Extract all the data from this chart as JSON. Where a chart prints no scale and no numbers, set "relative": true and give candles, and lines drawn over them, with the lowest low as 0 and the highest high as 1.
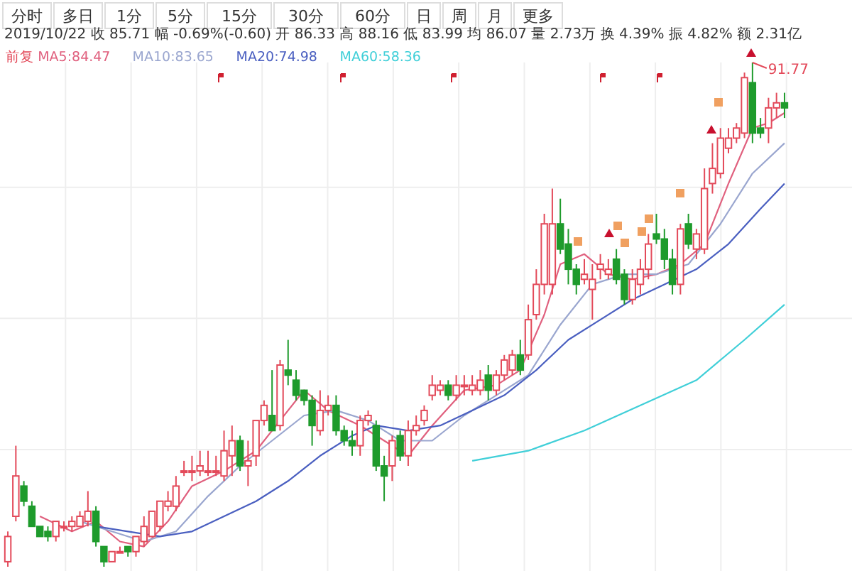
{
  "chart_data": {
    "type": "candlestick",
    "relative": true,
    "grid": true,
    "legend": "top left",
    "subtitle": "2019/10/22  收 85.71  幅 -0.69%(-0.60)  开 86.33  高 88.16  低 83.99  均 86.07  量 2.73万  换 4.39%  振 4.82%  额 2.31亿",
    "annotations": [
      "分时",
      "多日",
      "1分",
      "5分",
      "15分",
      "30分",
      "60分",
      "日",
      "周",
      "月",
      "更多"
    ],
    "categories": [
      null,
      null,
      null,
      null,
      null,
      null,
      null,
      null,
      null,
      null,
      null,
      null,
      null,
      null,
      null,
      null,
      null,
      null,
      null,
      null,
      null,
      null,
      null,
      null,
      null,
      null,
      null,
      null,
      null,
      null,
      null,
      null,
      null,
      null,
      null,
      null,
      null,
      null,
      null,
      null,
      null,
      null,
      null,
      null,
      null,
      null,
      null,
      null,
      null,
      null,
      null,
      null,
      null,
      null,
      null,
      null,
      null,
      null,
      null,
      null,
      null,
      null,
      null,
      null,
      null,
      null,
      null,
      null,
      null,
      null,
      null,
      null,
      null,
      null,
      null,
      null,
      null,
      null,
      null,
      null,
      null,
      null,
      null,
      null,
      null,
      null,
      null,
      null,
      null,
      null,
      null,
      null,
      null,
      null,
      null,
      null,
      null,
      null
    ],
    "series": [
      {
        "name": "前复",
        "value_labels": [
          null,
          null,
          null,
          null,
          null,
          null,
          null,
          null,
          null,
          null,
          null,
          null,
          null,
          null,
          null,
          null,
          null,
          null,
          null,
          null,
          null,
          null,
          null,
          null,
          null,
          null,
          null,
          null,
          null,
          null,
          null,
          null,
          null,
          null,
          null,
          null,
          null,
          null,
          null,
          null,
          null,
          null,
          null,
          null,
          null,
          null,
          null,
          null,
          null,
          null,
          null,
          null,
          null,
          null,
          null,
          null,
          null,
          null,
          null,
          null,
          null,
          null,
          null,
          null,
          null,
          null,
          null,
          null,
          null,
          null,
          null,
          null,
          null,
          null,
          null,
          null,
          null,
          null,
          null,
          null,
          null,
          null,
          null,
          null,
          null,
          null,
          null,
          null,
          null,
          null,
          null,
          null,
          null,
          "91.77",
          null,
          null,
          null,
          null
        ],
        "color": "#e34a5a",
        "colors": [
          "#e34a5a",
          "#e34a5a",
          "#1e9b2c",
          "#1e9b2c",
          "#1e9b2c",
          "#1e9b2c",
          "#e34a5a",
          "#e34a5a",
          "#e34a5a",
          "#e34a5a",
          "#e34a5a",
          "#1e9b2c",
          "#1e9b2c",
          "#e34a5a",
          "#e34a5a",
          "#1e9b2c",
          "#e34a5a",
          "#e34a5a",
          "#e34a5a",
          "#e34a5a",
          "#e34a5a",
          "#e34a5a",
          "#e34a5a",
          "#e34a5a",
          "#e34a5a",
          "#e34a5a",
          "#e34a5a",
          "#e34a5a",
          "#e34a5a",
          "#1e9b2c",
          "#e34a5a",
          "#e34a5a",
          "#e34a5a",
          "#1e9b2c",
          "#e34a5a",
          "#1e9b2c",
          "#1e9b2c",
          "#1e9b2c",
          "#1e9b2c",
          "#e34a5a",
          "#e34a5a",
          "#1e9b2c",
          "#1e9b2c",
          "#1e9b2c",
          "#e34a5a",
          "#e34a5a",
          "#1e9b2c",
          "#1e9b2c",
          "#e34a5a",
          "#1e9b2c",
          "#e34a5a",
          "#e34a5a",
          "#e34a5a",
          "#e34a5a",
          "#e34a5a",
          "#1e9b2c",
          "#e34a5a",
          "#e34a5a",
          "#e34a5a",
          "#e34a5a",
          "#1e9b2c",
          "#e34a5a",
          "#e34a5a",
          "#e34a5a",
          "#1e9b2c",
          "#e34a5a",
          "#e34a5a",
          "#e34a5a",
          "#e34a5a",
          "#1e9b2c",
          "#1e9b2c",
          "#1e9b2c",
          "#e34a5a",
          "#e34a5a",
          "#e34a5a",
          "#e34a5a",
          "#1e9b2c",
          "#1e9b2c",
          "#e34a5a",
          "#e34a5a",
          "#e34a5a",
          "#1e9b2c",
          "#1e9b2c",
          "#1e9b2c",
          "#e34a5a",
          "#1e9b2c",
          "#e34a5a",
          "#e34a5a",
          "#e34a5a",
          "#e34a5a",
          "#e34a5a",
          "#e34a5a",
          "#e34a5a",
          "#1e9b2c",
          "#1e9b2c",
          "#e34a5a",
          "#e34a5a",
          "#1e9b2c"
        ],
        "ohlc": [
          [
            0.01,
            0.07,
            0,
            0.06
          ],
          [
            0.1,
            0.24,
            0.09,
            0.18
          ],
          [
            0.16,
            0.17,
            0.12,
            0.13
          ],
          [
            0.12,
            0.13,
            0.08,
            0.08
          ],
          [
            0.08,
            0.08,
            0.06,
            0.06
          ],
          [
            0.07,
            0.08,
            0.05,
            0.06
          ],
          [
            0.06,
            0.09,
            0.05,
            0.09
          ],
          [
            0.08,
            0.09,
            0.07,
            0.08
          ],
          [
            0.08,
            0.1,
            0.07,
            0.09
          ],
          [
            0.08,
            0.11,
            0.08,
            0.1
          ],
          [
            0.09,
            0.15,
            0.08,
            0.11
          ],
          [
            0.11,
            0.12,
            0.04,
            0.05
          ],
          [
            0.04,
            0.04,
            0.0,
            0.01
          ],
          [
            0.01,
            0.03,
            0.01,
            0.03
          ],
          [
            0.03,
            0.04,
            0.03,
            0.03
          ],
          [
            0.04,
            0.04,
            0.02,
            0.03
          ],
          [
            0.03,
            0.06,
            0.02,
            0.06
          ],
          [
            0.05,
            0.1,
            0.04,
            0.08
          ],
          [
            0.06,
            0.11,
            0.06,
            0.11
          ],
          [
            0.08,
            0.13,
            0.07,
            0.13
          ],
          [
            0.12,
            0.15,
            0.11,
            0.13
          ],
          [
            0.12,
            0.18,
            0.11,
            0.16
          ],
          [
            0.19,
            0.21,
            0.18,
            0.19
          ],
          [
            0.19,
            0.22,
            0.17,
            0.19
          ],
          [
            0.19,
            0.23,
            0.18,
            0.2
          ],
          [
            0.19,
            0.23,
            0.18,
            0.19
          ],
          [
            0.19,
            0.22,
            0.18,
            0.19
          ],
          [
            0.18,
            0.27,
            0.17,
            0.23
          ],
          [
            0.22,
            0.28,
            0.18,
            0.25
          ],
          [
            0.25,
            0.26,
            0.19,
            0.2
          ],
          [
            0.2,
            0.25,
            0.16,
            0.21
          ],
          [
            0.22,
            0.29,
            0.2,
            0.29
          ],
          [
            0.29,
            0.33,
            0.28,
            0.32
          ],
          [
            0.3,
            0.39,
            0.27,
            0.27
          ],
          [
            0.28,
            0.41,
            0.27,
            0.4
          ],
          [
            0.39,
            0.45,
            0.36,
            0.38
          ],
          [
            0.37,
            0.39,
            0.33,
            0.34
          ],
          [
            0.35,
            0.35,
            0.32,
            0.33
          ],
          [
            0.33,
            0.34,
            0.24,
            0.28
          ],
          [
            0.27,
            0.35,
            0.26,
            0.31
          ],
          [
            0.31,
            0.34,
            0.3,
            0.32
          ],
          [
            0.32,
            0.34,
            0.26,
            0.27
          ],
          [
            0.27,
            0.28,
            0.24,
            0.25
          ],
          [
            0.25,
            0.27,
            0.22,
            0.24
          ],
          [
            0.24,
            0.3,
            0.22,
            0.29
          ],
          [
            0.29,
            0.31,
            0.28,
            0.3
          ],
          [
            0.28,
            0.29,
            0.19,
            0.2
          ],
          [
            0.2,
            0.22,
            0.13,
            0.18
          ],
          [
            0.2,
            0.26,
            0.17,
            0.25
          ],
          [
            0.26,
            0.27,
            0.21,
            0.22
          ],
          [
            0.22,
            0.29,
            0.2,
            0.27
          ],
          [
            0.27,
            0.3,
            0.26,
            0.28
          ],
          [
            0.29,
            0.32,
            0.28,
            0.31
          ],
          [
            0.34,
            0.38,
            0.33,
            0.36
          ],
          [
            0.35,
            0.37,
            0.34,
            0.36
          ],
          [
            0.36,
            0.37,
            0.33,
            0.34
          ],
          [
            0.34,
            0.38,
            0.33,
            0.36
          ],
          [
            0.36,
            0.38,
            0.34,
            0.36
          ],
          [
            0.35,
            0.38,
            0.34,
            0.36
          ],
          [
            0.35,
            0.39,
            0.34,
            0.37
          ],
          [
            0.38,
            0.4,
            0.33,
            0.35
          ],
          [
            0.35,
            0.39,
            0.34,
            0.38
          ],
          [
            0.38,
            0.42,
            0.37,
            0.41
          ],
          [
            0.39,
            0.43,
            0.38,
            0.42
          ],
          [
            0.42,
            0.45,
            0.38,
            0.39
          ],
          [
            0.42,
            0.52,
            0.41,
            0.49
          ],
          [
            0.5,
            0.59,
            0.49,
            0.56
          ],
          [
            0.56,
            0.7,
            0.54,
            0.68
          ],
          [
            0.56,
            0.75,
            0.54,
            0.68
          ],
          [
            0.68,
            0.73,
            0.62,
            0.63
          ],
          [
            0.64,
            0.67,
            0.56,
            0.59
          ],
          [
            0.59,
            0.6,
            0.54,
            0.56
          ],
          [
            0.57,
            0.61,
            0.56,
            0.58
          ],
          [
            0.55,
            0.6,
            0.49,
            0.57
          ],
          [
            0.59,
            0.62,
            0.57,
            0.6
          ],
          [
            0.58,
            0.61,
            0.57,
            0.59
          ],
          [
            0.61,
            0.63,
            0.56,
            0.57
          ],
          [
            0.58,
            0.59,
            0.52,
            0.53
          ],
          [
            0.53,
            0.59,
            0.52,
            0.57
          ],
          [
            0.56,
            0.61,
            0.54,
            0.59
          ],
          [
            0.59,
            0.66,
            0.57,
            0.64
          ],
          [
            0.66,
            0.7,
            0.64,
            0.65
          ],
          [
            0.65,
            0.67,
            0.59,
            0.61
          ],
          [
            0.61,
            0.63,
            0.54,
            0.56
          ],
          [
            0.56,
            0.68,
            0.54,
            0.67
          ],
          [
            0.68,
            0.7,
            0.63,
            0.64
          ],
          [
            0.63,
            0.67,
            0.61,
            0.66
          ],
          [
            0.63,
            0.79,
            0.62,
            0.75
          ],
          [
            0.76,
            0.84,
            0.74,
            0.79
          ],
          [
            0.78,
            0.87,
            0.77,
            0.85
          ],
          [
            0.83,
            0.87,
            0.82,
            0.85
          ],
          [
            0.85,
            0.88,
            0.84,
            0.87
          ],
          [
            0.86,
            0.98,
            0.85,
            0.97
          ],
          [
            0.96,
            1.0,
            0.84,
            0.86
          ],
          [
            0.87,
            0.89,
            0.85,
            0.86
          ],
          [
            0.87,
            0.93,
            0.84,
            0.91
          ],
          [
            0.91,
            0.94,
            0.89,
            0.92
          ],
          [
            0.92,
            0.94,
            0.89,
            0.91
          ]
        ]
      },
      {
        "type": "line",
        "name": "MA5:84.47",
        "color": "#e0607e",
        "values": [
          null,
          null,
          null,
          null,
          0.1,
          null,
          null,
          null,
          0.07,
          null,
          null,
          0.09,
          null,
          null,
          0.05,
          null,
          null,
          0.04,
          null,
          null,
          0.09,
          null,
          null,
          0.16,
          null,
          null,
          null,
          0.19,
          null,
          null,
          null,
          0.23,
          null,
          null,
          0.29,
          null,
          null,
          0.35,
          null,
          null,
          0.31,
          null,
          null,
          null,
          0.28,
          null,
          null,
          0.25,
          null,
          null,
          0.22,
          null,
          null,
          0.28,
          null,
          null,
          null,
          0.35,
          null,
          null,
          null,
          0.36,
          null,
          null,
          0.39,
          null,
          null,
          0.5,
          null,
          0.6,
          null,
          null,
          0.62,
          null,
          null,
          0.58,
          null,
          null,
          0.57,
          null,
          null,
          0.58,
          null,
          null,
          0.6,
          null,
          null,
          0.64,
          null,
          null,
          0.76,
          null,
          null,
          0.87,
          null,
          0.88,
          null,
          0.9
        ]
      },
      {
        "type": "line",
        "name": "MA10:83.65",
        "color": "#9aa6cf",
        "values": [
          null,
          null,
          null,
          null,
          null,
          null,
          null,
          null,
          null,
          0.09,
          null,
          null,
          null,
          0.07,
          null,
          null,
          null,
          0.05,
          null,
          null,
          null,
          0.07,
          null,
          null,
          null,
          0.14,
          null,
          null,
          null,
          0.2,
          null,
          null,
          null,
          0.25,
          null,
          null,
          null,
          0.3,
          null,
          null,
          null,
          0.31,
          null,
          null,
          null,
          0.29,
          null,
          null,
          null,
          0.25,
          null,
          null,
          null,
          0.25,
          null,
          null,
          null,
          0.3,
          null,
          null,
          null,
          0.34,
          null,
          null,
          null,
          0.38,
          null,
          null,
          null,
          0.48,
          null,
          null,
          null,
          0.56,
          null,
          null,
          null,
          0.58,
          null,
          null,
          null,
          0.58,
          null,
          null,
          null,
          0.6,
          null,
          null,
          null,
          0.68,
          null,
          null,
          null,
          0.78,
          null,
          null,
          null,
          0.84
        ]
      },
      {
        "type": "line",
        "name": "MA20:74.98",
        "color": "#4a5fc0",
        "values": [
          null,
          null,
          null,
          null,
          null,
          null,
          null,
          null,
          null,
          null,
          null,
          0.08,
          null,
          null,
          null,
          0.07,
          null,
          null,
          null,
          0.06,
          null,
          null,
          null,
          0.07,
          null,
          null,
          null,
          0.1,
          null,
          null,
          null,
          0.13,
          null,
          null,
          null,
          0.17,
          null,
          null,
          null,
          0.22,
          null,
          null,
          null,
          0.26,
          null,
          null,
          0.28,
          null,
          null,
          null,
          0.27,
          null,
          null,
          null,
          0.28,
          null,
          null,
          null,
          0.31,
          null,
          null,
          null,
          0.34,
          null,
          null,
          null,
          0.39,
          null,
          null,
          null,
          0.45,
          null,
          null,
          null,
          0.49,
          null,
          null,
          null,
          0.53,
          null,
          null,
          null,
          0.56,
          null,
          null,
          null,
          0.59,
          null,
          null,
          null,
          0.64,
          null,
          null,
          null,
          0.71,
          null,
          null,
          0.76
        ]
      },
      {
        "type": "line",
        "name": "MA60:58.36",
        "color": "#40cfd8",
        "values": [
          null,
          null,
          null,
          null,
          null,
          null,
          null,
          null,
          null,
          null,
          null,
          null,
          null,
          null,
          null,
          null,
          null,
          null,
          null,
          null,
          null,
          null,
          null,
          null,
          null,
          null,
          null,
          null,
          null,
          null,
          null,
          null,
          null,
          null,
          null,
          null,
          null,
          null,
          null,
          null,
          null,
          null,
          null,
          null,
          null,
          null,
          null,
          null,
          null,
          null,
          null,
          null,
          null,
          null,
          null,
          null,
          null,
          null,
          0.21,
          null,
          null,
          null,
          null,
          null,
          null,
          0.23,
          null,
          null,
          null,
          null,
          null,
          null,
          0.27,
          null,
          null,
          null,
          null,
          null,
          null,
          0.32,
          null,
          null,
          null,
          null,
          null,
          null,
          0.37,
          null,
          null,
          null,
          null,
          null,
          0.45,
          null,
          null,
          null,
          null,
          0.52
        ]
      }
    ]
  }
}
